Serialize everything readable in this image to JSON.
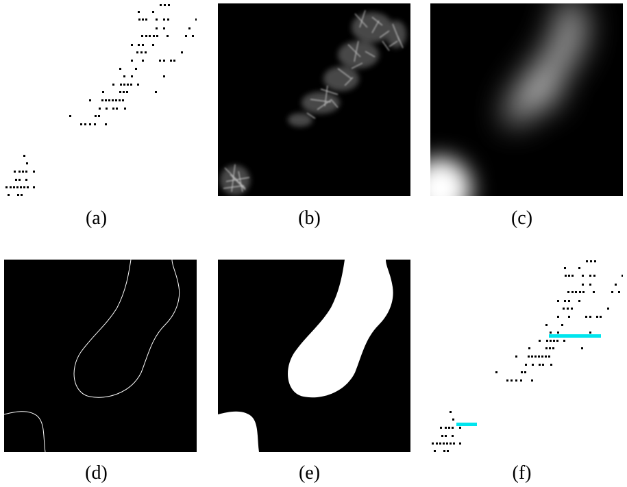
{
  "panels": {
    "a": {
      "label": "(a)"
    },
    "b": {
      "label": "(b)"
    },
    "c": {
      "label": "(c)"
    },
    "d": {
      "label": "(d)"
    },
    "e": {
      "label": "(e)"
    },
    "f": {
      "label": "(f)"
    }
  },
  "colors": {
    "points": "#000000",
    "background_dark": "#000000",
    "mask_fill": "#ffffff",
    "contour": "#ffffff",
    "highlight_segment": "#00e5ee"
  }
}
